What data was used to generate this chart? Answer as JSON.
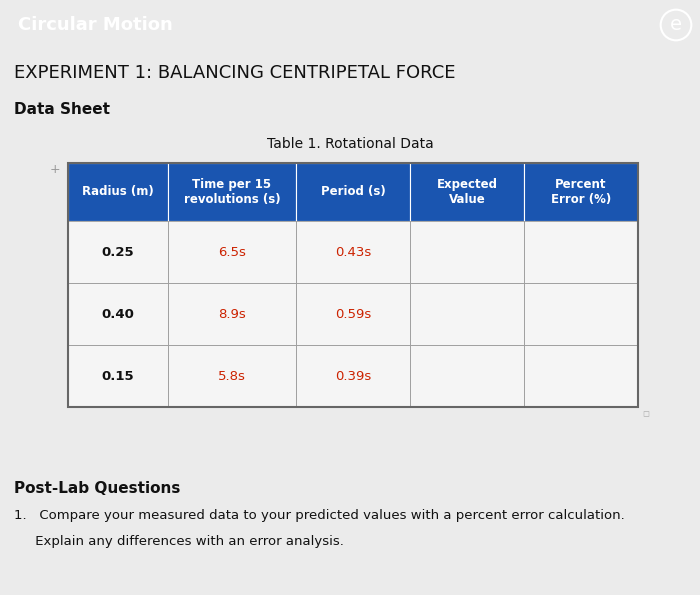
{
  "header_bg": "#6b8fa8",
  "header_text_color": "#ffffff",
  "page_bg": "#ebebeb",
  "title_bar_text": "Circular Motion",
  "experiment_title": "EXPERIMENT 1: BALANCING CENTRIPETAL FORCE",
  "section_title": "Data Sheet",
  "table_title": "Table 1. Rotational Data",
  "col_headers": [
    "Radius (m)",
    "Time per 15\nrevolutions (s)",
    "Period (s)",
    "Expected\nValue",
    "Percent\nError (%)"
  ],
  "rows": [
    [
      "0.25",
      "6.5s",
      "0.43s",
      "",
      ""
    ],
    [
      "0.40",
      "8.9s",
      "0.59s",
      "",
      ""
    ],
    [
      "0.15",
      "5.8s",
      "0.39s",
      "",
      ""
    ]
  ],
  "time_color": "#cc2200",
  "period_color": "#cc2200",
  "post_lab_title": "Post-Lab Questions",
  "question_1": "1.   Compare your measured data to your predicted values with a percent error calculation.",
  "question_1b": "     Explain any differences with an error analysis.",
  "table_header_blue": "#1a55b0",
  "table_border_color": "#777777",
  "cell_bg": "#f5f5f5"
}
